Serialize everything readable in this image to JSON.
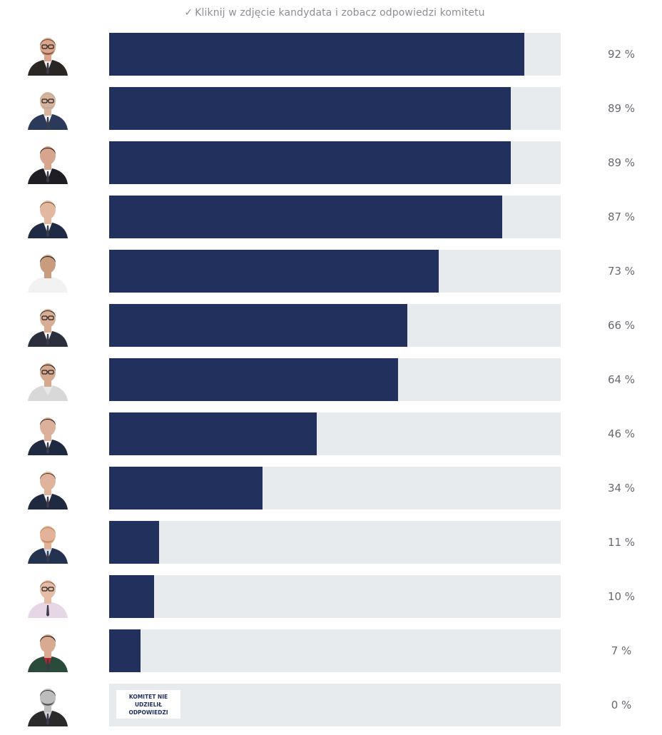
{
  "hint": {
    "check_icon": "check-icon",
    "text": "Kliknij w zdjęcie kandydata i zobacz odpowiedzi komitetu"
  },
  "colors": {
    "bar": "#22305e",
    "track": "#e8ebee",
    "percent_text": "#666a70"
  },
  "chart_data": {
    "type": "bar",
    "orientation": "horizontal",
    "unit": "%",
    "rows": [
      {
        "value": 92,
        "label": "92 %",
        "skin": "#d9a48a",
        "hair": "#6a4a38",
        "suit": "#2a2624",
        "shirt": "#efece8",
        "glasses": true,
        "beard": true,
        "shirt_open": false
      },
      {
        "value": 89,
        "label": "89 %",
        "skin": "#d8b39c",
        "hair": "#b7aa9b",
        "suit": "#2c3a5a",
        "shirt": "#f2f2f2",
        "glasses": true,
        "beard": true,
        "shirt_open": false
      },
      {
        "value": 89,
        "label": "89 %",
        "skin": "#d6a58d",
        "hair": "#2a1c16",
        "suit": "#1e1e24",
        "shirt": "#f5f5f5",
        "glasses": false,
        "beard": false,
        "shirt_open": false
      },
      {
        "value": 87,
        "label": "87 %",
        "skin": "#e3b8a0",
        "hair": "#8a5c34",
        "suit": "#1f2a44",
        "shirt": "#f5f5f5",
        "glasses": false,
        "beard": false,
        "shirt_open": false
      },
      {
        "value": 73,
        "label": "73 %",
        "skin": "#c99c80",
        "hair": "#2a2420",
        "suit": "#f2f2f2",
        "shirt": "#f2f2f2",
        "glasses": false,
        "beard": false,
        "shirt_open": true
      },
      {
        "value": 66,
        "label": "66 %",
        "skin": "#d9ad94",
        "hair": "#3a2c26",
        "suit": "#2b2e3c",
        "shirt": "#f5f5f5",
        "glasses": true,
        "beard": false,
        "shirt_open": false
      },
      {
        "value": 64,
        "label": "64 %",
        "skin": "#d6a88e",
        "hair": "#2a2220",
        "suit": "#d8d8d8",
        "shirt": "#e8e8e8",
        "glasses": true,
        "beard": false,
        "shirt_open": true
      },
      {
        "value": 46,
        "label": "46 %",
        "skin": "#dcb09a",
        "hair": "#2c2420",
        "suit": "#1f2a40",
        "shirt": "#f5f5f5",
        "glasses": false,
        "beard": false,
        "shirt_open": false
      },
      {
        "value": 34,
        "label": "34 %",
        "skin": "#e0b49c",
        "hair": "#5a3e2c",
        "suit": "#1f2a40",
        "shirt": "#f5f5f5",
        "glasses": false,
        "beard": false,
        "shirt_open": false
      },
      {
        "value": 11,
        "label": "11 %",
        "skin": "#e2b39a",
        "hair": "#b58a4a",
        "suit": "#23324e",
        "shirt": "#cfe0f2",
        "glasses": false,
        "beard": true,
        "shirt_open": false
      },
      {
        "value": 10,
        "label": "10 %",
        "skin": "#e6bca6",
        "hair": "#8c6448",
        "suit": "#e7d6e6",
        "shirt": "#e7d6e6",
        "glasses": true,
        "beard": false,
        "shirt_open": false
      },
      {
        "value": 7,
        "label": "7 %",
        "skin": "#d8aa92",
        "hair": "#1c1414",
        "suit": "#2a4a3a",
        "shirt": "#b8252b",
        "glasses": false,
        "beard": false,
        "shirt_open": false
      },
      {
        "value": 0,
        "label": "0 %",
        "skin": "#bdbdbd",
        "hair": "#3c3c3c",
        "suit": "#2a2a2a",
        "shirt": "#d0d0d0",
        "glasses": false,
        "beard": true,
        "shirt_open": false,
        "no_answer_text": "KOMITET NIE UDZIELIŁ ODPOWIEDZI"
      }
    ],
    "xlim": [
      0,
      100
    ]
  }
}
